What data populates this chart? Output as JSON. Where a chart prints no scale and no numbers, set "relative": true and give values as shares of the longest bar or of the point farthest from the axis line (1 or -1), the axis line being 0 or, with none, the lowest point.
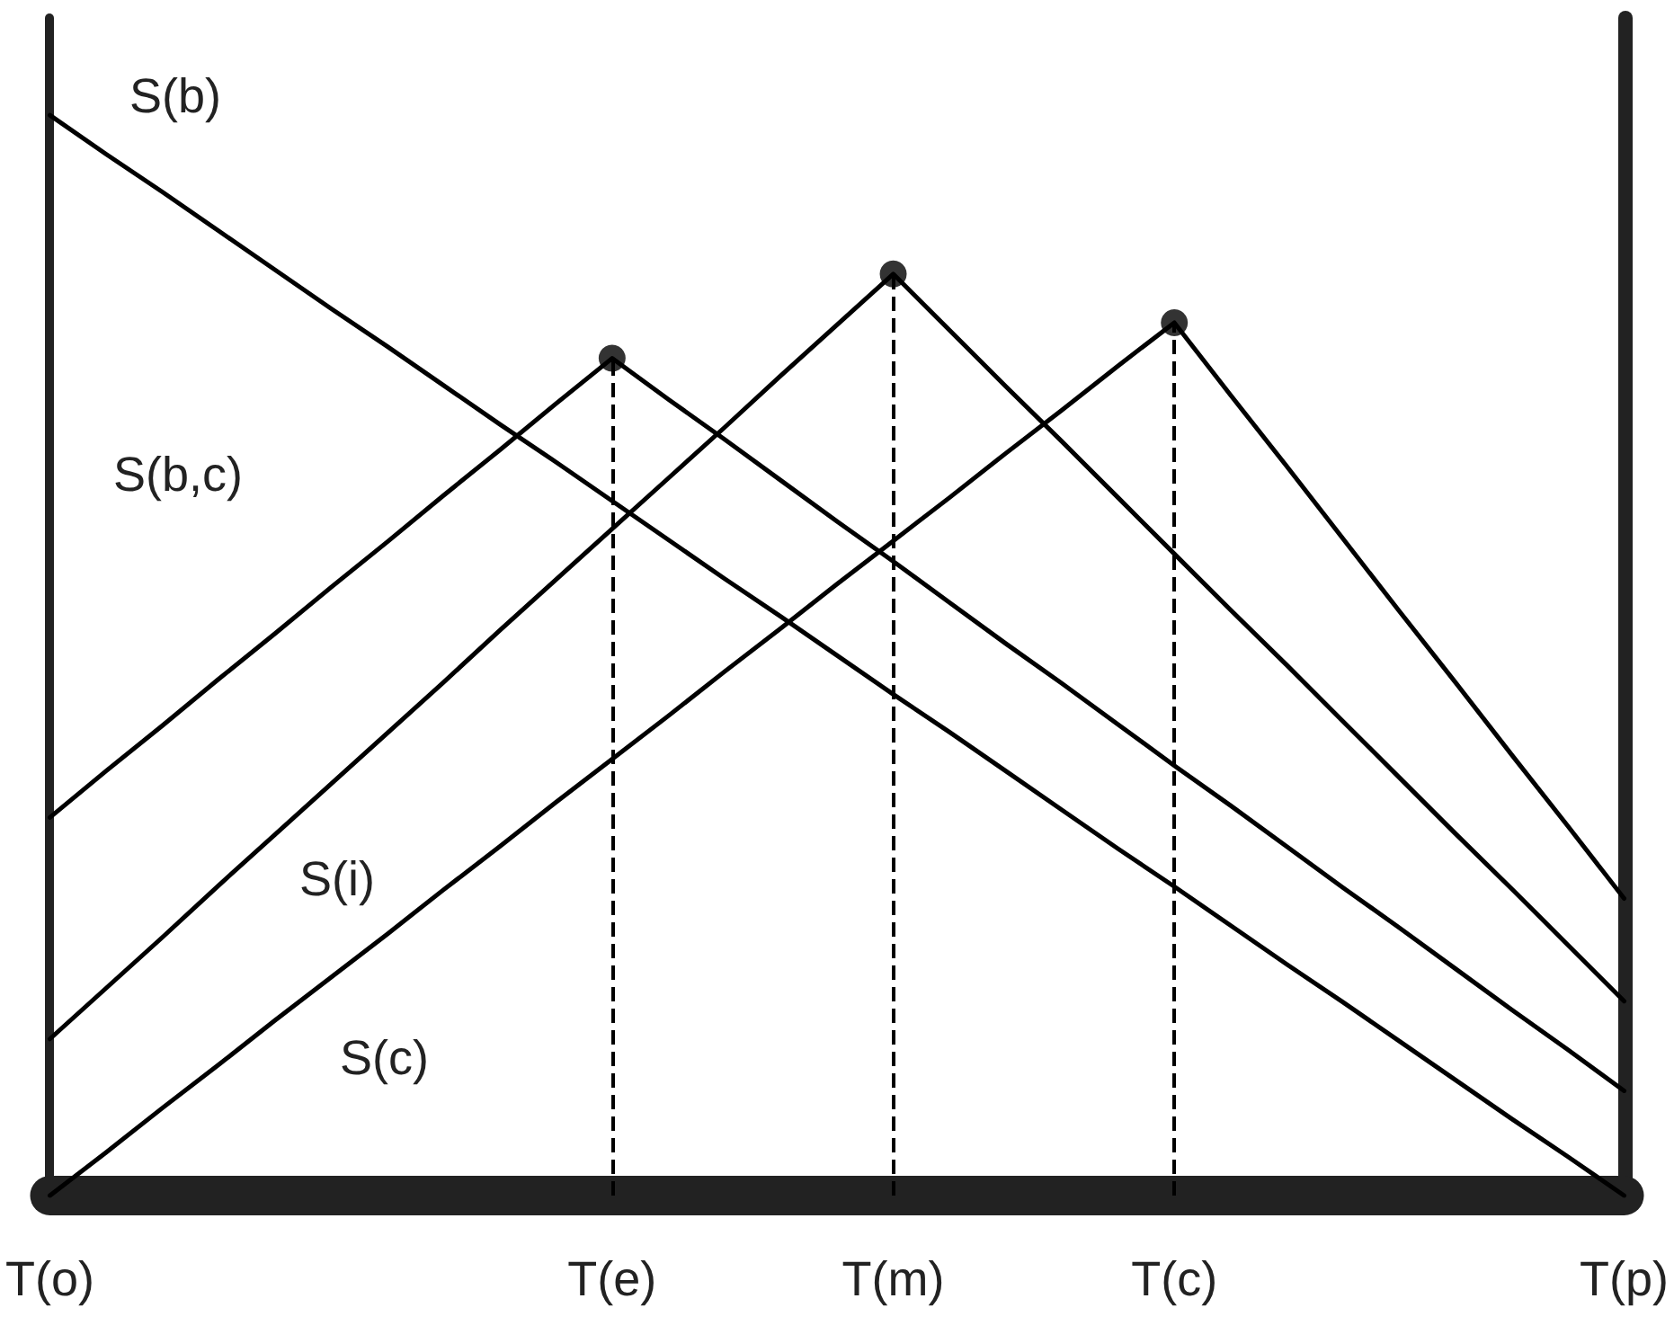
{
  "chart_data": {
    "type": "line",
    "relative": true,
    "marker": "none",
    "line_style": "solid",
    "grid": false,
    "legend": false,
    "categories": [
      "T(o)",
      null,
      null,
      null,
      null,
      null,
      null,
      null,
      null,
      null,
      "T(e)",
      null,
      null,
      null,
      null,
      "T(m)",
      null,
      null,
      null,
      null,
      "T(c)",
      null,
      null,
      null,
      null,
      null,
      null,
      null,
      "T(p)"
    ],
    "series": [
      {
        "name": "S(b)",
        "color": "#000000",
        "values": [
          1,
          0.964,
          0.929,
          0.893,
          0.857,
          0.821,
          0.786,
          0.75,
          0.714,
          0.679,
          0.643,
          0.607,
          0.571,
          0.536,
          0.5,
          0.464,
          0.429,
          0.393,
          0.357,
          0.321,
          0.286,
          0.25,
          0.214,
          0.179,
          0.143,
          0.107,
          0.071,
          0.036,
          0
        ]
      },
      {
        "name": "S(b,c)",
        "color": "#000000",
        "values": [
          0.35,
          0.393,
          0.435,
          0.478,
          0.52,
          0.563,
          0.605,
          0.648,
          0.69,
          0.733,
          0.775,
          0.737,
          0.7,
          0.662,
          0.624,
          0.587,
          0.549,
          0.511,
          0.474,
          0.436,
          0.398,
          0.361,
          0.323,
          0.285,
          0.248,
          0.21,
          0.172,
          0.135,
          0.097
        ]
      },
      {
        "name": "S(i)",
        "color": "#000000",
        "values": [
          0.145,
          0.192,
          0.239,
          0.287,
          0.334,
          0.381,
          0.428,
          0.475,
          0.523,
          0.57,
          0.617,
          0.664,
          0.711,
          0.759,
          0.806,
          0.853,
          0.801,
          0.749,
          0.698,
          0.646,
          0.594,
          0.542,
          0.491,
          0.439,
          0.387,
          0.335,
          0.284,
          0.232,
          0.18
        ]
      },
      {
        "name": "S(c)",
        "color": "#000000",
        "values": [
          0,
          0.04,
          0.081,
          0.121,
          0.162,
          0.202,
          0.242,
          0.283,
          0.323,
          0.364,
          0.404,
          0.444,
          0.485,
          0.525,
          0.566,
          0.606,
          0.646,
          0.687,
          0.727,
          0.768,
          0.808,
          0.741,
          0.675,
          0.608,
          0.541,
          0.475,
          0.408,
          0.342,
          0.275
        ]
      },
      {
        "type": "scatter",
        "marker": "circle",
        "color": "#000000",
        "x": [
          "T(e)",
          "T(m)",
          "T(c)"
        ],
        "values": [
          0.775,
          0.853,
          0.808
        ]
      }
    ],
    "ref_lines": [
      {
        "axis": "x",
        "value": "T(e)",
        "color": "#000000",
        "line_style": "dashed"
      },
      {
        "axis": "x",
        "value": "T(m)",
        "color": "#000000",
        "line_style": "dashed"
      },
      {
        "axis": "x",
        "value": "T(c)",
        "color": "#000000",
        "line_style": "dashed"
      }
    ]
  }
}
